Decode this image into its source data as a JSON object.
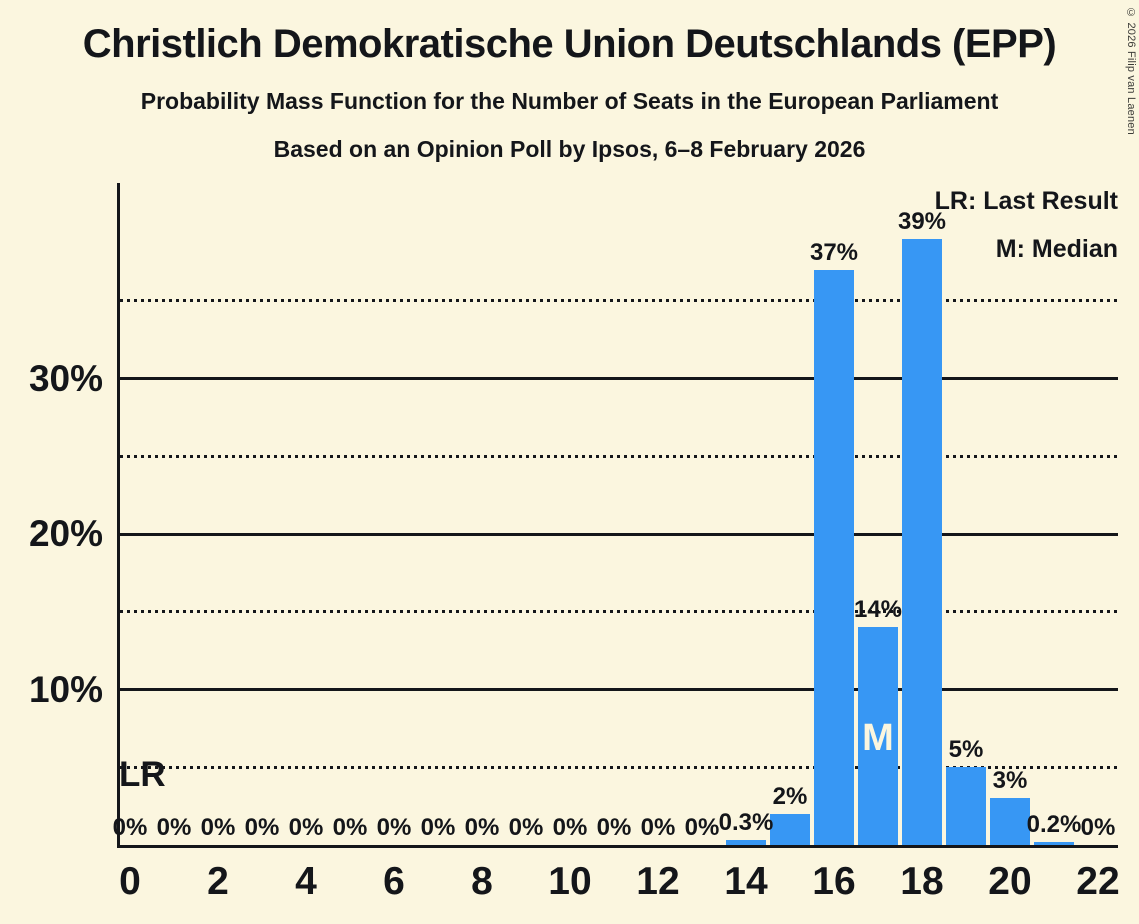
{
  "copyright": "© 2026 Filip van Laenen",
  "colors": {
    "background": "#FBF6DF",
    "bar": "#3797F4",
    "text": "#14161a"
  },
  "annotations": {
    "lr_label": "LR",
    "median_label": "M",
    "median_seat": 17,
    "lr_gridline_pct": 5
  },
  "chart_data": {
    "type": "bar",
    "title": "Christlich Demokratische Union Deutschlands (EPP)",
    "subtitle": "Probability Mass Function for the Number of Seats in the European Parliament",
    "source_line": "Based on an Opinion Poll by Ipsos, 6–8 February 2026",
    "xlabel": "",
    "ylabel": "",
    "x": [
      0,
      1,
      2,
      3,
      4,
      5,
      6,
      7,
      8,
      9,
      10,
      11,
      12,
      13,
      14,
      15,
      16,
      17,
      18,
      19,
      20,
      21,
      22
    ],
    "values": [
      0,
      0,
      0,
      0,
      0,
      0,
      0,
      0,
      0,
      0,
      0,
      0,
      0,
      0,
      0.3,
      2,
      37,
      14,
      39,
      5,
      3,
      0.2,
      0
    ],
    "value_labels": [
      "0%",
      "0%",
      "0%",
      "0%",
      "0%",
      "0%",
      "0%",
      "0%",
      "0%",
      "0%",
      "0%",
      "0%",
      "0%",
      "0%",
      "0.3%",
      "2%",
      "37%",
      "14%",
      "39%",
      "5%",
      "3%",
      "0.2%",
      "0%"
    ],
    "xticks": [
      0,
      2,
      4,
      6,
      8,
      10,
      12,
      14,
      16,
      18,
      20,
      22
    ],
    "yticks": [
      {
        "value": 10,
        "label": "10%"
      },
      {
        "value": 20,
        "label": "20%"
      },
      {
        "value": 30,
        "label": "30%"
      }
    ],
    "ylim": [
      0,
      42.6
    ],
    "grid": {
      "solid_pct": [
        10,
        20,
        30
      ],
      "dotted_pct": [
        5,
        15,
        25,
        35
      ]
    },
    "legend": {
      "position": "top-right",
      "items": [
        {
          "key": "LR",
          "label": "LR: Last Result"
        },
        {
          "key": "M",
          "label": "M: Median"
        }
      ]
    }
  }
}
